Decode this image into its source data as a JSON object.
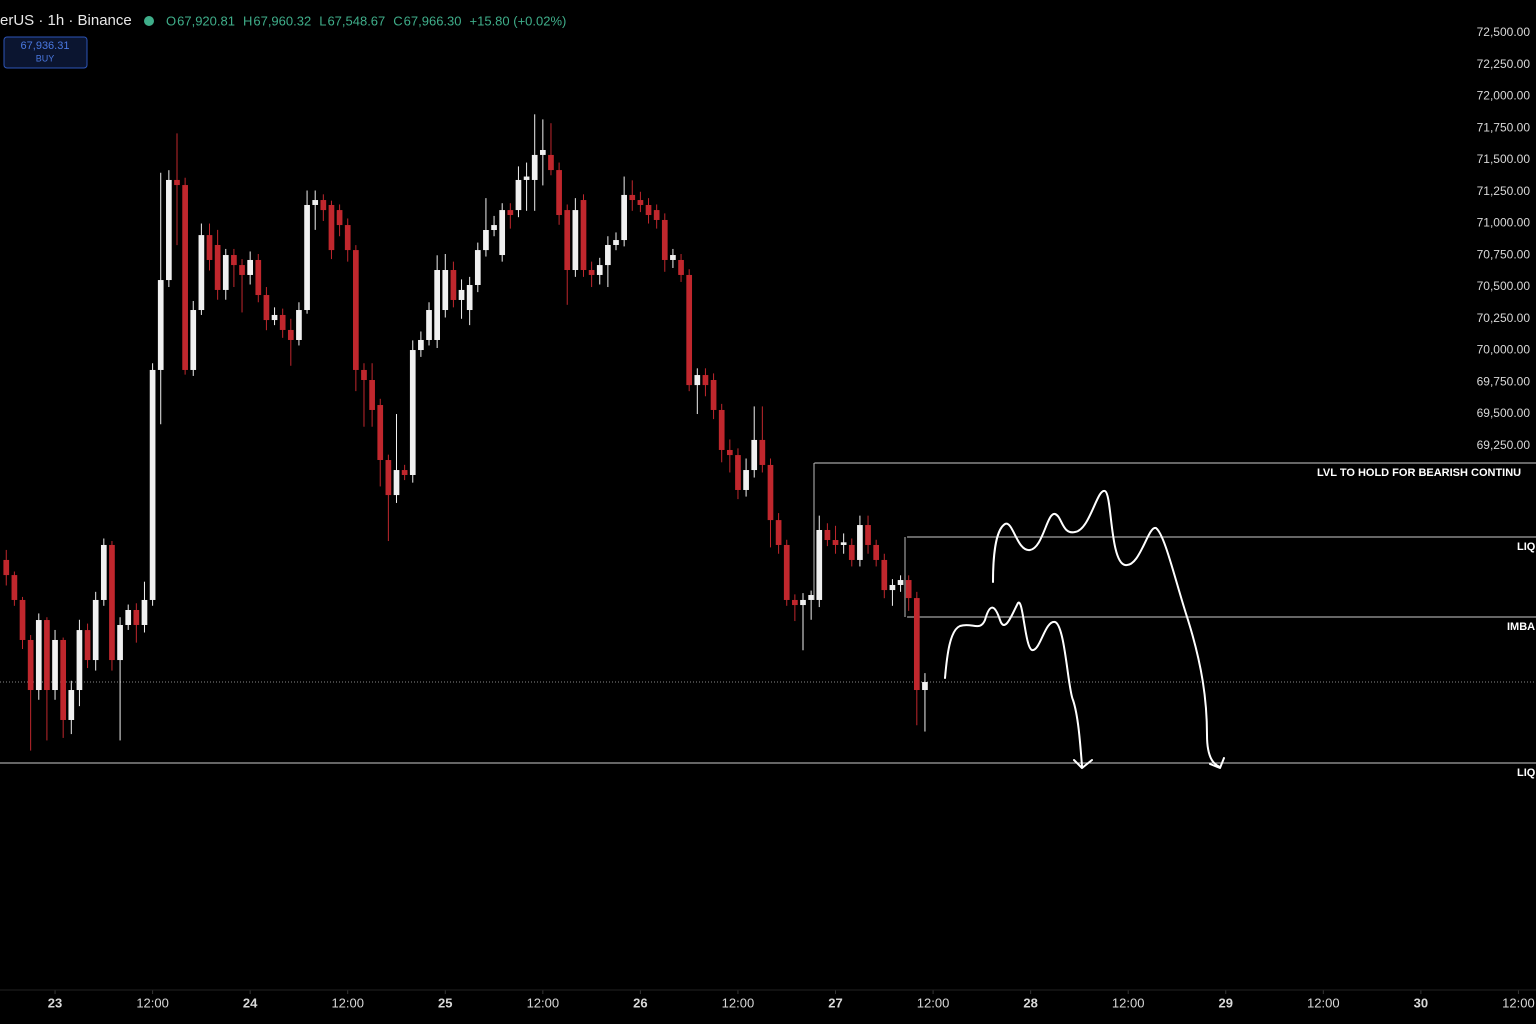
{
  "header": {
    "symbol": "erUS · 1h · Binance",
    "ohlc": [
      {
        "key": "O",
        "value": "67,920.81"
      },
      {
        "key": "H",
        "value": "67,960.32"
      },
      {
        "key": "L",
        "value": "67,548.67"
      },
      {
        "key": "C",
        "value": "67,966.30"
      }
    ],
    "change": "+15.80 (+0.02%)",
    "buy_price": "67,936.31",
    "buy_label": "BUY"
  },
  "chart_data": {
    "type": "candlestick",
    "up_color": "#f0f0f0",
    "down_color": "#c0272d",
    "xlim": [
      -6.77,
      182.16
    ],
    "ylim": [
      64965,
      72760
    ],
    "xticks": [
      {
        "value": 0,
        "label": "23"
      },
      {
        "value": 12,
        "label": "12:00"
      },
      {
        "value": 24,
        "label": "24"
      },
      {
        "value": 36,
        "label": "12:00"
      },
      {
        "value": 48,
        "label": "25"
      },
      {
        "value": 60,
        "label": "12:00"
      },
      {
        "value": 72,
        "label": "26"
      },
      {
        "value": 84,
        "label": "12:00"
      },
      {
        "value": 96,
        "label": "27"
      },
      {
        "value": 108,
        "label": "12:00"
      },
      {
        "value": 120,
        "label": "28"
      },
      {
        "value": 132,
        "label": "12:00"
      },
      {
        "value": 144,
        "label": "29"
      },
      {
        "value": 156,
        "label": "12:00"
      },
      {
        "value": 168,
        "label": "30"
      },
      {
        "value": 180,
        "label": "12:00"
      }
    ],
    "yticks": [
      {
        "value": 72500,
        "label": "72,500.00"
      },
      {
        "value": 72250,
        "label": "72,250.00"
      },
      {
        "value": 72000,
        "label": "72,000.00"
      },
      {
        "value": 71750,
        "label": "71,750.00"
      },
      {
        "value": 71500,
        "label": "71,500.00"
      },
      {
        "value": 71250,
        "label": "71,250.00"
      },
      {
        "value": 71000,
        "label": "71,000.00"
      },
      {
        "value": 70750,
        "label": "70,750.00"
      },
      {
        "value": 70500,
        "label": "70,500.00"
      },
      {
        "value": 70250,
        "label": "70,250.00"
      },
      {
        "value": 70000,
        "label": "70,000.00"
      },
      {
        "value": 69750,
        "label": "69,750.00"
      },
      {
        "value": 69500,
        "label": "69,500.00"
      },
      {
        "value": 69250,
        "label": "69,250.00"
      }
    ],
    "x": [
      -6,
      -5,
      -4,
      -3,
      -2,
      -1,
      0,
      1,
      2,
      3,
      4,
      5,
      6,
      7,
      8,
      9,
      10,
      11,
      12,
      13,
      14,
      15,
      16,
      17,
      18,
      19,
      20,
      21,
      22,
      23,
      24,
      25,
      26,
      27,
      28,
      29,
      30,
      31,
      32,
      33,
      34,
      35,
      36,
      37,
      38,
      39,
      40,
      41,
      42,
      43,
      44,
      45,
      46,
      47,
      48,
      49,
      50,
      51,
      52,
      53,
      54,
      55,
      56,
      57,
      58,
      59,
      60,
      61,
      62,
      63,
      64,
      65,
      66,
      67,
      68,
      69,
      70,
      71,
      72,
      73,
      74,
      75,
      76,
      77,
      78,
      79,
      80,
      81,
      82,
      83,
      84,
      85,
      86,
      87,
      88,
      89,
      90,
      91,
      92,
      93,
      94,
      95,
      96,
      97,
      98,
      99,
      100,
      101,
      102,
      103,
      104,
      105,
      106,
      107
    ],
    "open": [
      68351,
      68232,
      68036,
      67721,
      67327,
      67878,
      67327,
      67721,
      67091,
      67327,
      67799,
      67563,
      68036,
      68469,
      67563,
      67839,
      67957,
      67839,
      68036,
      69847,
      70555,
      71343,
      71303,
      69847,
      70319,
      70909,
      70831,
      70477,
      70752,
      70673,
      70595,
      70713,
      70437,
      70240,
      70280,
      70162,
      70083,
      70319,
      71146,
      71185,
      71146,
      71106,
      70988,
      70791,
      69847,
      69768,
      69571,
      69138,
      68862,
      69059,
      69020,
      70004,
      70083,
      70083,
      70319,
      70634,
      70398,
      70319,
      70516,
      70791,
      70949,
      70752,
      71106,
      71106,
      71343,
      71343,
      71540,
      71540,
      71421,
      71106,
      70634,
      71185,
      70634,
      70595,
      70673,
      70831,
      70870,
      71225,
      71185,
      71146,
      71106,
      71028,
      70713,
      70713,
      70595,
      69728,
      69807,
      69768,
      69532,
      69217,
      69177,
      68902,
      69059,
      69296,
      69099,
      68665,
      68469,
      68036,
      67996,
      68036,
      68036,
      68587,
      68508,
      68469,
      68469,
      68351,
      68626,
      68469,
      68351,
      68114,
      68154,
      68193,
      68051,
      67327
    ],
    "high": [
      68430,
      68260,
      68060,
      67760,
      67930,
      67900,
      67800,
      67740,
      67400,
      67880,
      67850,
      68100,
      68520,
      68500,
      67900,
      68000,
      68010,
      68180,
      69900,
      71400,
      71420,
      71710,
      71360,
      70390,
      71000,
      71000,
      70950,
      70800,
      70800,
      70720,
      70780,
      70760,
      70500,
      70340,
      70330,
      70250,
      70380,
      71260,
      71260,
      71230,
      71180,
      71150,
      71040,
      70830,
      69900,
      69900,
      69620,
      69180,
      69500,
      69100,
      70080,
      70150,
      70380,
      70750,
      70760,
      70700,
      70560,
      70580,
      70850,
      71200,
      71060,
      71160,
      71160,
      71450,
      71480,
      71860,
      71820,
      71790,
      71480,
      71150,
      71200,
      71230,
      70700,
      70730,
      70900,
      70930,
      71370,
      71340,
      71250,
      71200,
      71150,
      71080,
      70800,
      70760,
      70640,
      69860,
      69860,
      69820,
      69580,
      69300,
      69230,
      69150,
      69560,
      69560,
      69150,
      68720,
      68510,
      68080,
      68090,
      68110,
      68700,
      68640,
      68620,
      68560,
      68520,
      68700,
      68700,
      68510,
      68400,
      68200,
      68230,
      68230,
      68100,
      67460
    ],
    "low": [
      68150,
      67990,
      67650,
      66850,
      67250,
      66930,
      67250,
      66950,
      66980,
      67200,
      67500,
      67480,
      67990,
      67480,
      66930,
      67800,
      67700,
      67780,
      67990,
      69420,
      70500,
      70830,
      69810,
      69800,
      70280,
      70630,
      70400,
      70400,
      70500,
      70300,
      70520,
      70380,
      70160,
      70200,
      70100,
      69880,
      70040,
      70290,
      70950,
      71020,
      70720,
      70900,
      70700,
      69680,
      69400,
      69400,
      68930,
      68500,
      68800,
      68980,
      68960,
      69950,
      70040,
      70020,
      70260,
      70340,
      70250,
      70200,
      70460,
      70740,
      70900,
      70700,
      70960,
      71050,
      71100,
      71100,
      71300,
      71380,
      70990,
      70360,
      70580,
      70580,
      70500,
      70520,
      70500,
      70790,
      70820,
      71100,
      71090,
      71000,
      70960,
      70620,
      70650,
      70540,
      69680,
      69500,
      69640,
      69460,
      69120,
      69040,
      68830,
      68850,
      69000,
      69040,
      68450,
      68400,
      67990,
      67870,
      67640,
      67880,
      67980,
      68460,
      68400,
      68400,
      68300,
      68300,
      68400,
      68300,
      68050,
      67990,
      68100,
      67950,
      67050,
      67000
    ],
    "close": [
      68232,
      68036,
      67721,
      67327,
      67878,
      67327,
      67721,
      67091,
      67327,
      67799,
      67563,
      68036,
      68469,
      67563,
      67839,
      67957,
      67839,
      68036,
      69847,
      70555,
      71343,
      71303,
      69847,
      70319,
      70909,
      70713,
      70477,
      70752,
      70673,
      70595,
      70713,
      70437,
      70240,
      70280,
      70162,
      70083,
      70319,
      71146,
      71185,
      71106,
      70791,
      70988,
      70791,
      69847,
      69768,
      69532,
      69138,
      68862,
      69059,
      69020,
      70004,
      70083,
      70319,
      70634,
      70634,
      70398,
      70477,
      70516,
      70791,
      70949,
      70988,
      71106,
      71067,
      71343,
      71370,
      71540,
      71579,
      71421,
      71067,
      70634,
      71106,
      70634,
      70595,
      70673,
      70831,
      70870,
      71225,
      71185,
      71146,
      71067,
      71028,
      70713,
      70752,
      70595,
      69728,
      69807,
      69728,
      69532,
      69217,
      69177,
      68902,
      69059,
      69296,
      69099,
      68665,
      68469,
      68036,
      67996,
      68036,
      68075,
      68587,
      68508,
      68469,
      68490,
      68351,
      68626,
      68469,
      68351,
      68114,
      68154,
      68193,
      68051,
      67327,
      67390
    ],
    "price_line": 67390,
    "levels": [
      {
        "label": "LVL TO HOLD FOR BEARISH CONTINU",
        "value": 69114,
        "start": 93.4
      },
      {
        "label": "LIQ",
        "value": 68532,
        "start": 104.8
      },
      {
        "label": "IMBA",
        "value": 67902,
        "start": 104.8
      },
      {
        "label": "LIQ",
        "value": 66752,
        "start": -6.77
      }
    ]
  }
}
